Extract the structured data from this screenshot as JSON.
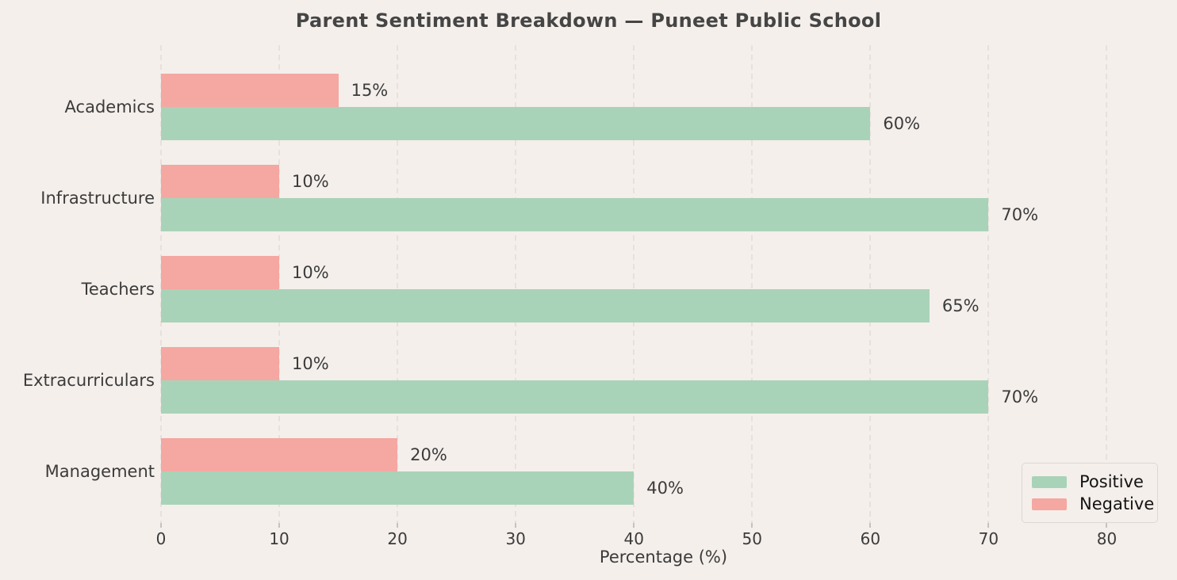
{
  "chart_data": {
    "type": "bar",
    "orientation": "horizontal",
    "title": "Parent Sentiment Breakdown — Puneet Public School",
    "categories": [
      "Academics",
      "Infrastructure",
      "Teachers",
      "Extracurriculars",
      "Management"
    ],
    "series": [
      {
        "name": "Negative",
        "color": "#f5a7a2",
        "values": [
          15,
          10,
          10,
          10,
          20
        ],
        "labels": [
          "15%",
          "10%",
          "10%",
          "10%",
          "20%"
        ]
      },
      {
        "name": "Positive",
        "color": "#a9d3b8",
        "values": [
          60,
          70,
          65,
          70,
          40
        ],
        "labels": [
          "60%",
          "70%",
          "65%",
          "70%",
          "40%"
        ]
      }
    ],
    "xlabel": "Percentage (%)",
    "x_ticks": [
      0,
      10,
      20,
      30,
      40,
      50,
      60,
      70,
      80
    ],
    "x_tick_labels": [
      "0",
      "10",
      "20",
      "30",
      "40",
      "50",
      "60",
      "70",
      "80"
    ],
    "xlim": [
      0,
      85
    ],
    "grid": "vertical-dashed",
    "legend": {
      "position": "lower-right",
      "entries": [
        {
          "label": "Positive",
          "color": "#a9d3b8"
        },
        {
          "label": "Negative",
          "color": "#f5a7a2"
        }
      ]
    }
  },
  "colors": {
    "background": "#f4efeb",
    "title_text": "#454545",
    "axis_text": "#3b3b3b",
    "legend_text": "#141414",
    "gridline": "#e6e1dd",
    "tick_mark": "#c6c2bf",
    "legend_border": "#dcd8d5"
  }
}
